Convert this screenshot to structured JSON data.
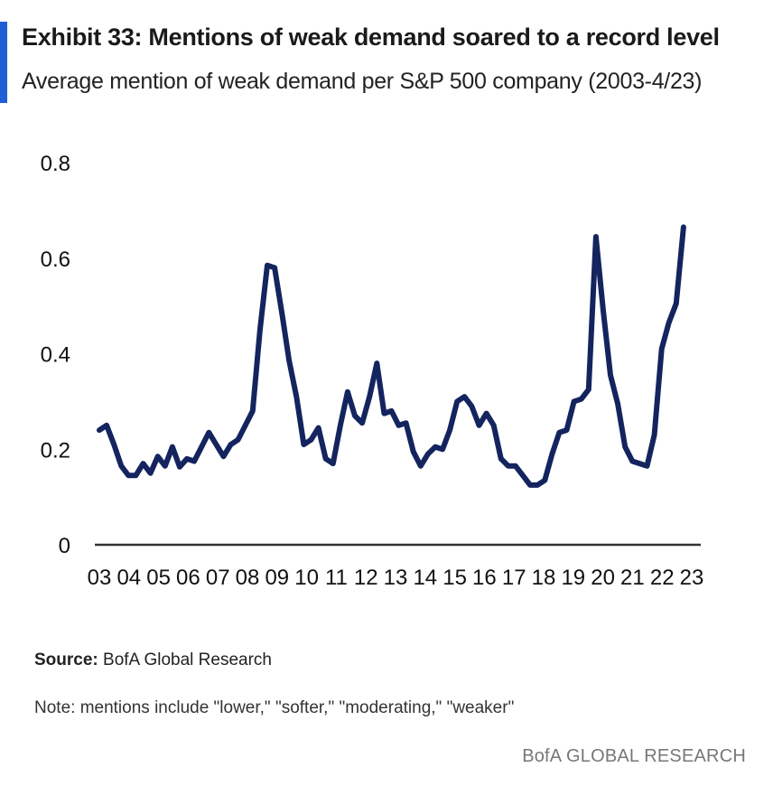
{
  "header": {
    "title": "Exhibit 33: Mentions of weak demand soared to a record level",
    "subtitle": "Average mention of weak demand per S&P 500 company (2003-4/23)"
  },
  "footer": {
    "source_label": "Source:",
    "source_text": "BofA Global Research",
    "note": "Note: mentions include \"lower,\" \"softer,\" \"moderating,\" \"weaker\"",
    "brand": "BofA GLOBAL RESEARCH"
  },
  "colors": {
    "line": "#14245e",
    "accent": "#1f5fd6"
  },
  "chart_data": {
    "type": "line",
    "title": "Exhibit 33: Mentions of weak demand soared to a record level",
    "subtitle": "Average mention of weak demand per S&P 500 company (2003-4/23)",
    "xlabel": "",
    "ylabel": "",
    "ylim": [
      0,
      0.8
    ],
    "yticks": [
      0,
      0.2,
      0.4,
      0.6,
      0.8
    ],
    "ytick_labels": [
      "0",
      "0.2",
      "0.4",
      "0.6",
      "0.8"
    ],
    "xtick_labels": [
      "03",
      "04",
      "05",
      "06",
      "07",
      "08",
      "09",
      "10",
      "11",
      "12",
      "13",
      "14",
      "15",
      "16",
      "17",
      "18",
      "19",
      "20",
      "21",
      "22",
      "23"
    ],
    "xlim": [
      2003,
      2023.25
    ],
    "grid": false,
    "legend": "none",
    "series": [
      {
        "x": [
          2003.0,
          2003.25,
          2003.5,
          2003.75,
          2004.0,
          2004.25,
          2004.5,
          2004.75,
          2005.0,
          2005.25,
          2005.5,
          2005.75,
          2006.0,
          2006.25,
          2006.5,
          2006.75,
          2007.0,
          2007.25,
          2007.5,
          2007.75,
          2008.0,
          2008.25,
          2008.5,
          2008.75,
          2009.0,
          2009.25,
          2009.5,
          2009.75,
          2010.0,
          2010.25,
          2010.5,
          2010.75,
          2011.0,
          2011.25,
          2011.5,
          2011.75,
          2012.0,
          2012.25,
          2012.5,
          2012.75,
          2013.0,
          2013.25,
          2013.5,
          2013.75,
          2014.0,
          2014.25,
          2014.5,
          2014.75,
          2015.0,
          2015.25,
          2015.5,
          2015.75,
          2016.0,
          2016.25,
          2016.5,
          2016.75,
          2017.0,
          2017.25,
          2017.5,
          2017.75,
          2018.0,
          2018.25,
          2018.5,
          2018.75,
          2019.0,
          2019.25,
          2019.5,
          2019.75,
          2020.0,
          2020.25,
          2020.5,
          2020.75,
          2021.0,
          2021.25,
          2021.5,
          2021.75,
          2022.0,
          2022.25,
          2022.5,
          2022.75,
          2023.0
        ],
        "values": [
          0.24,
          0.25,
          0.21,
          0.165,
          0.145,
          0.145,
          0.17,
          0.15,
          0.185,
          0.165,
          0.205,
          0.163,
          0.18,
          0.175,
          0.205,
          0.235,
          0.21,
          0.185,
          0.21,
          0.22,
          0.25,
          0.28,
          0.45,
          0.585,
          0.58,
          0.485,
          0.385,
          0.31,
          0.21,
          0.22,
          0.245,
          0.18,
          0.17,
          0.25,
          0.32,
          0.27,
          0.255,
          0.31,
          0.38,
          0.275,
          0.28,
          0.25,
          0.255,
          0.195,
          0.165,
          0.19,
          0.205,
          0.2,
          0.24,
          0.3,
          0.31,
          0.29,
          0.25,
          0.275,
          0.25,
          0.18,
          0.165,
          0.165,
          0.145,
          0.125,
          0.125,
          0.135,
          0.19,
          0.235,
          0.24,
          0.3,
          0.305,
          0.325,
          0.645,
          0.49,
          0.355,
          0.295,
          0.205,
          0.175,
          0.17,
          0.165,
          0.23,
          0.41,
          0.465,
          0.505,
          0.665
        ]
      }
    ]
  }
}
